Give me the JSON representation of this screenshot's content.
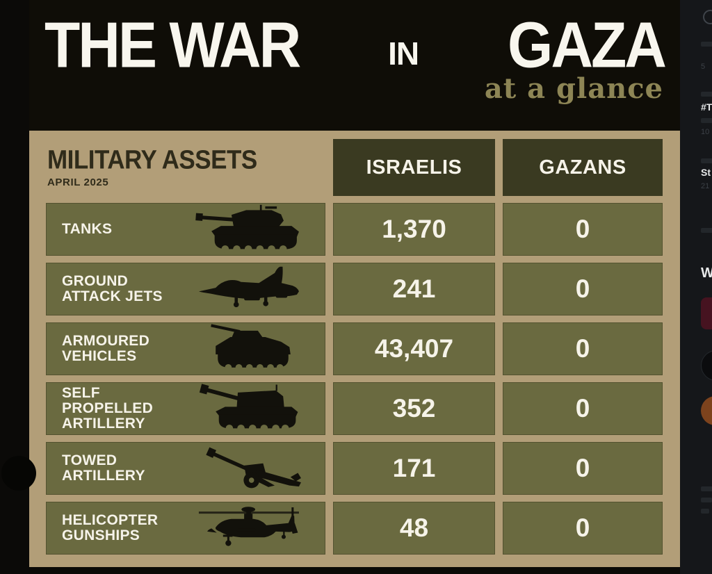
{
  "infographic": {
    "title": {
      "part1": "THE WAR",
      "part2": "IN",
      "part3": "GAZA"
    },
    "subtitle": "at a glance",
    "table": {
      "title": "MILITARY ASSETS",
      "date": "APRIL 2025",
      "columns": [
        "ISRAELIS",
        "GAZANS"
      ],
      "rows": [
        {
          "label": "TANKS",
          "label_line2": "",
          "icon": "tank-icon",
          "israelis": "1,370",
          "gazans": "0"
        },
        {
          "label": "GROUND",
          "label_line2": "ATTACK JETS",
          "icon": "ground-attack-jet-icon",
          "israelis": "241",
          "gazans": "0"
        },
        {
          "label": "ARMOURED",
          "label_line2": "VEHICLES",
          "icon": "armoured-vehicle-icon",
          "israelis": "43,407",
          "gazans": "0"
        },
        {
          "label": "SELF PROPELLED",
          "label_line2": "ARTILLERY",
          "icon": "self-propelled-artillery-icon",
          "israelis": "352",
          "gazans": "0"
        },
        {
          "label": "TOWED",
          "label_line2": "ARTILLERY",
          "icon": "towed-artillery-icon",
          "israelis": "171",
          "gazans": "0"
        },
        {
          "label": "HELICOPTER",
          "label_line2": "GUNSHIPS",
          "icon": "helicopter-gunship-icon",
          "israelis": "48",
          "gazans": "0"
        }
      ]
    }
  },
  "sidebar": {
    "fragments": {
      "f5": "5",
      "fhash": "#T",
      "f10": "10",
      "fst": "St",
      "f21": "21",
      "fw": "W"
    },
    "icons": [
      "search-icon",
      "media-thumbnail",
      "avatar",
      "avatar"
    ]
  },
  "colors": {
    "outer_bar": "#0b0a08",
    "header_bg": "#0f0d07",
    "title_white": "#f8f6ee",
    "subtitle_olive": "#8d8555",
    "table_bg": "#b29e78",
    "cell_olive": "#6a6a40",
    "header_cell": "#3a3a21",
    "dark_text": "#2f2b1a",
    "cell_text": "#f6f3e9",
    "icon_black": "#12110b",
    "bottom_bar": "#0b0a07",
    "sidebar_bg": "#15171a",
    "sidebar_text": "#6a6f76",
    "sidebar_bold": "#e7e9ea",
    "sidebar_red": "#461320",
    "sidebar_orange": "#7d431d"
  },
  "chart_data": {
    "type": "table",
    "title": "THE WAR IN GAZA at a glance",
    "subtitle": "MILITARY ASSETS — APRIL 2025",
    "categories": [
      "Tanks",
      "Ground attack jets",
      "Armoured vehicles",
      "Self propelled artillery",
      "Towed artillery",
      "Helicopter gunships"
    ],
    "series": [
      {
        "name": "Israelis",
        "values": [
          1370,
          241,
          43407,
          352,
          171,
          48
        ]
      },
      {
        "name": "Gazans",
        "values": [
          0,
          0,
          0,
          0,
          0,
          0
        ]
      }
    ],
    "legend_position": "column headers",
    "grid": false
  }
}
